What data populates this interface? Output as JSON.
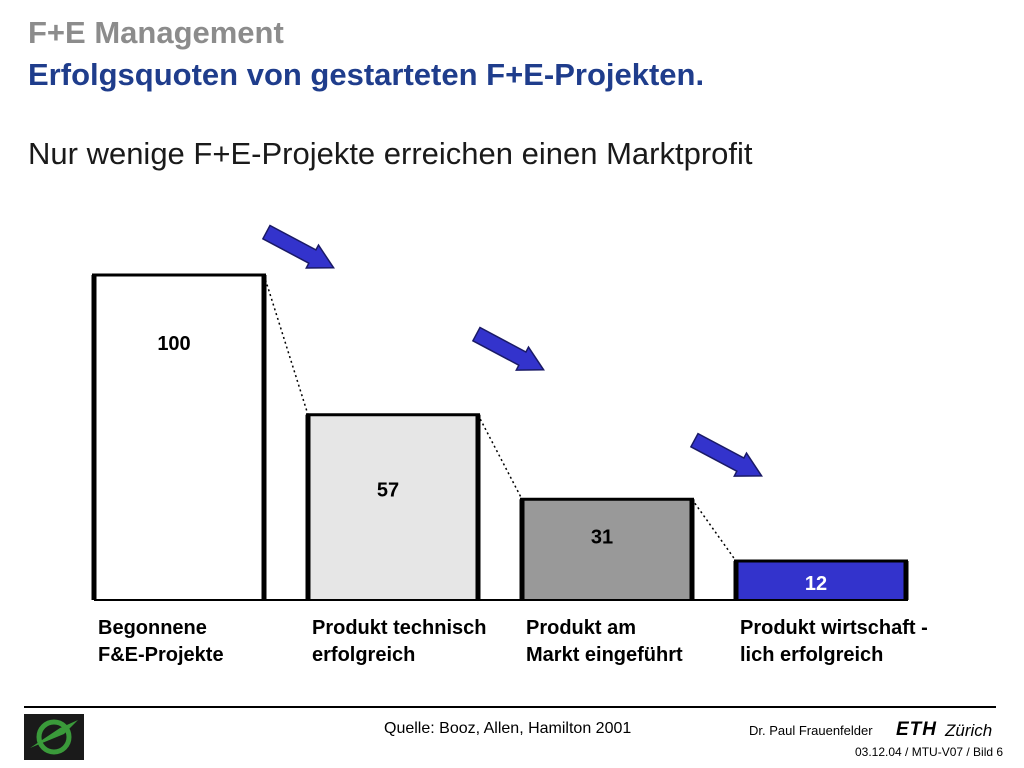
{
  "header": {
    "title": "F+E Management",
    "subtitle": "Erfolgsquoten von gestarteten F+E-Projekten.",
    "headline": "Nur wenige F+E-Projekte erreichen einen Marktprofit"
  },
  "chart_data": {
    "type": "bar",
    "categories": [
      [
        "Begonnene",
        "F&E-Projekte"
      ],
      [
        "Produkt technisch",
        "erfolgreich"
      ],
      [
        "Produkt am",
        "Markt eingeführt"
      ],
      [
        "Produkt wirtschaft -",
        "lich erfolgreich"
      ]
    ],
    "values": [
      100,
      57,
      31,
      12
    ],
    "ylim": [
      0,
      100
    ],
    "grid": false,
    "legend": false,
    "bar_colors": [
      "#ffffff",
      "#e6e6e6",
      "#999999",
      "#3333cc"
    ],
    "value_label_colors": [
      "#000000",
      "#000000",
      "#000000",
      "#ffffff"
    ],
    "arrow_color": "#3333cc"
  },
  "footer": {
    "source": "Quelle: Booz, Allen, Hamilton 2001",
    "author": "Dr. Paul Frauenfelder",
    "eth": "ETH",
    "zurich": "Zürich",
    "slide_ref": "03.12.04 / MTU-V07 / Bild 6",
    "logo": "eth-logo-icon"
  }
}
